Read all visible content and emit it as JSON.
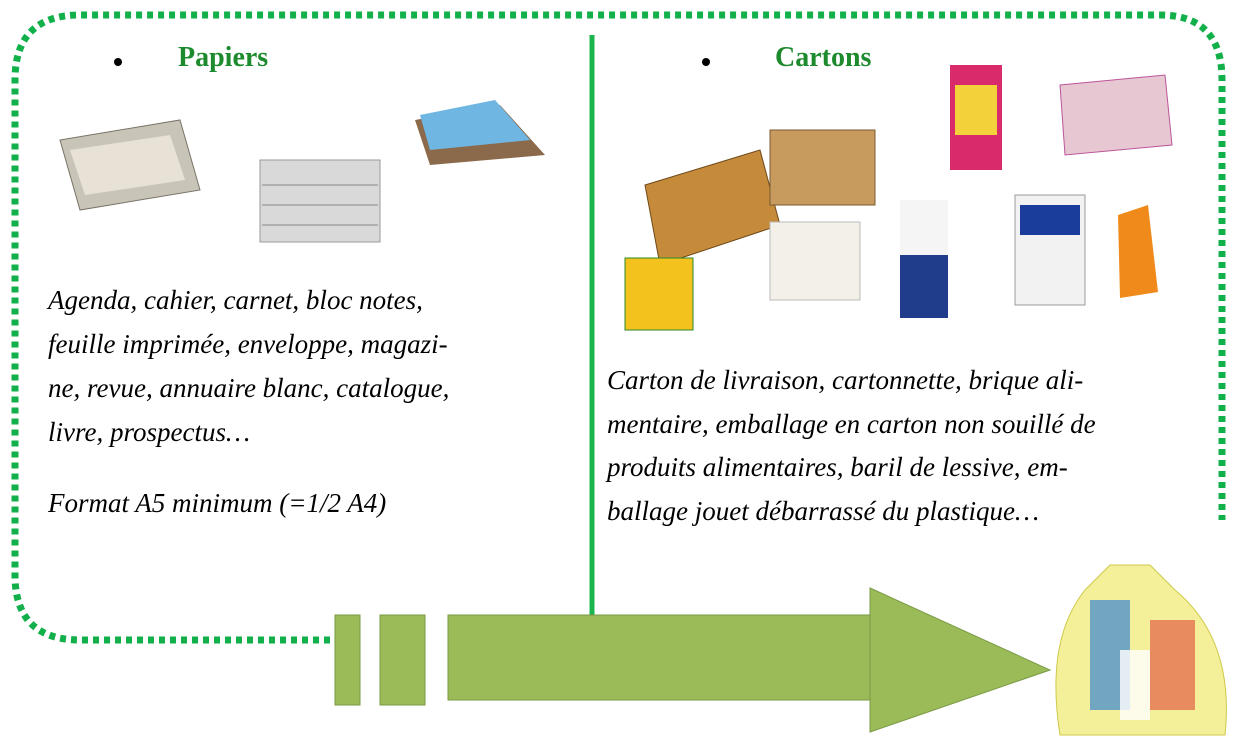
{
  "sections": [
    {
      "title": "Papiers",
      "description": [
        "Agenda, cahier, carnet, bloc notes,",
        "feuille imprimée, enveloppe, magazi-",
        "ne, revue, annuaire blanc, catalogue,",
        "livre, prospectus…"
      ],
      "note": "Format A5 minimum (=1/2 A4)"
    },
    {
      "title": "Cartons",
      "description": [
        "Carton de livraison, cartonnette, brique ali-",
        "mentaire, emballage en carton non souillé de",
        "produits alimentaires, baril de lessive, em-",
        "ballage jouet débarrassé du plastique…"
      ]
    }
  ]
}
